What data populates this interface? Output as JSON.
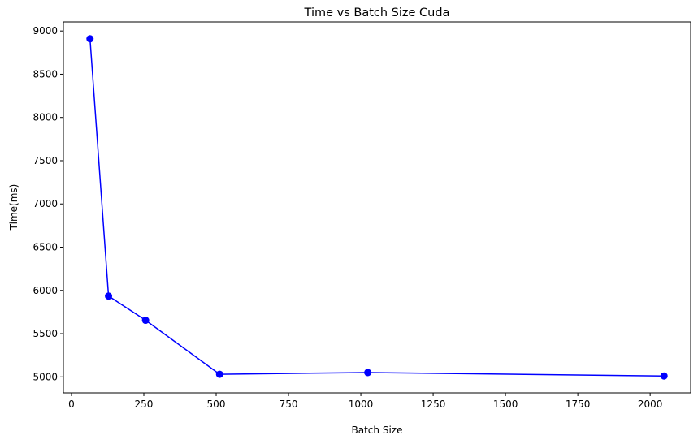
{
  "chart_data": {
    "type": "line",
    "title": "Time vs Batch Size Cuda",
    "xlabel": "Batch Size",
    "ylabel": "Time(ms)",
    "x": [
      64,
      128,
      256,
      512,
      1024,
      2048
    ],
    "series": [
      {
        "values": [
          8910,
          5935,
          5655,
          5030,
          5050,
          5010
        ]
      }
    ],
    "xlim": [
      -28,
      2140
    ],
    "ylim": [
      4815,
      9105
    ],
    "xticks": [
      0,
      250,
      500,
      750,
      1000,
      1250,
      1500,
      1750,
      2000
    ],
    "yticks": [
      5000,
      5500,
      6000,
      6500,
      7000,
      7500,
      8000,
      8500,
      9000
    ],
    "xtick_labels": [
      "0",
      "250",
      "500",
      "750",
      "1000",
      "1250",
      "1500",
      "1750",
      "2000"
    ],
    "ytick_labels": [
      "5000",
      "5500",
      "6000",
      "6500",
      "7000",
      "7500",
      "8000",
      "8500",
      "9000"
    ],
    "line_color": "#0000ff",
    "marker": "circle",
    "grid": false,
    "legend": "none"
  }
}
